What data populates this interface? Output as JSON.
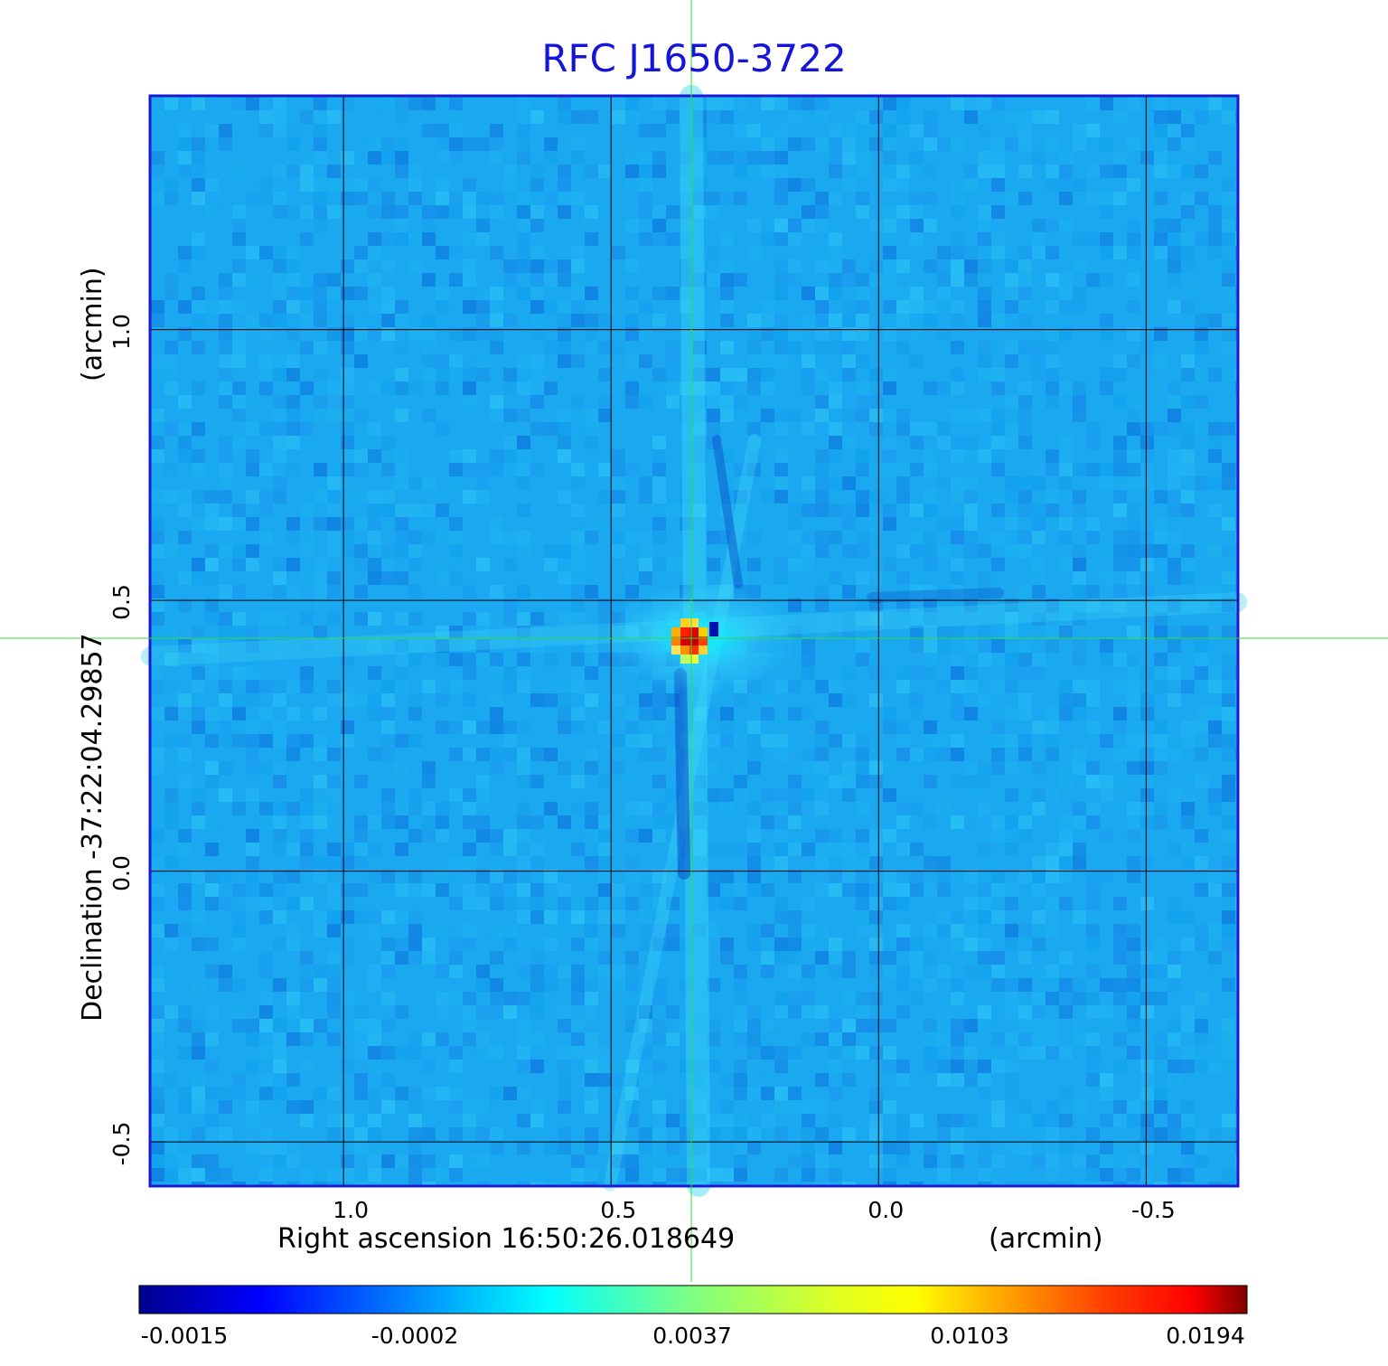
{
  "chart_data": {
    "type": "heatmap",
    "title": "RFC J1650-3722",
    "xlabel": "Right ascension  16:50:26.018649",
    "xunit": "(arcmin)",
    "ylabel": "Declination  -37:22:04.29857",
    "yunit": "(arcmin)",
    "x_ticks": [
      1.0,
      0.5,
      0.0,
      -0.5
    ],
    "x_tick_labels": [
      "1.0",
      "0.5",
      "0.0",
      "-0.5"
    ],
    "y_ticks": [
      1.0,
      0.5,
      0.0,
      -0.5
    ],
    "y_tick_labels": [
      "1.0",
      "0.5",
      "0.0",
      "-0.5"
    ],
    "xlim": [
      1.36,
      -0.67
    ],
    "ylim": [
      -0.58,
      1.43
    ],
    "grid": true,
    "source_peak": {
      "x": 0.35,
      "y": 0.43,
      "value": 0.0194
    },
    "crosshair": {
      "x": 0.35,
      "y": 0.43
    },
    "colorbar": {
      "tick_values": [
        -0.0015,
        -0.0002,
        0.0037,
        0.0103,
        0.0194
      ],
      "tick_labels": [
        "-0.0015",
        "-0.0002",
        "0.0037",
        "0.0103",
        "0.0194"
      ],
      "colormap": "jet",
      "range": [
        -0.0015,
        0.0194
      ]
    },
    "colors": {
      "title": "#1515d8",
      "frame": "#1a1ad0",
      "grid": "#000000",
      "crosshair": "#33dd33"
    }
  }
}
